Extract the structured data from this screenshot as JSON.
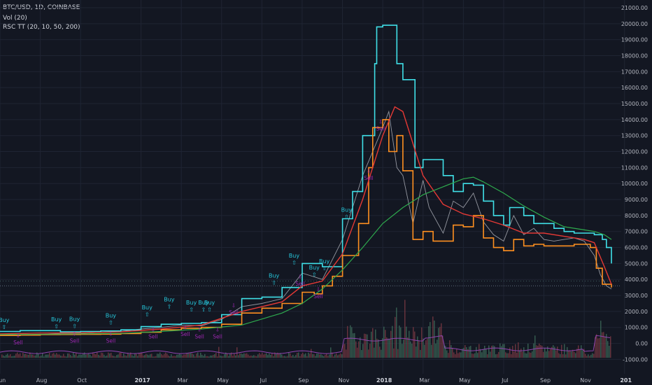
{
  "header": {
    "symbol_line": "BTC/USD, 1D, COINBASE",
    "volume_line": "Vol (20)",
    "indicator_line": "RSC TT (20, 10, 50, 200)"
  },
  "colors": {
    "background": "#131722",
    "grid": "#1f2433",
    "price": "#9598a1",
    "upper_channel": "#40e0e8",
    "lower_channel": "#ff9020",
    "ma_fast": "#e53935",
    "ma_slow": "#2eaa4e",
    "volume_up": "#3d6b5a",
    "volume_down": "#7a3a44",
    "volume_ma": "#8e44ad",
    "buy": "#26c6da",
    "sell": "#9c27b0"
  },
  "chart_data": {
    "type": "line",
    "title": "BTC/USD, 1D, COINBASE",
    "ylim": [
      -500,
      21000
    ],
    "y_ticks": [
      "21000.00",
      "20000.00",
      "19000.00",
      "18000.00",
      "17000.00",
      "16000.00",
      "15000.00",
      "14000.00",
      "13000.00",
      "12000.00",
      "11000.00",
      "10000.00",
      "9000.00",
      "8000.00",
      "7000.00",
      "6000.00",
      "5000.00",
      "4000.00",
      "3000.00",
      "2000.00",
      "1000.00",
      "0.00",
      "-1000.00"
    ],
    "x_ticks": [
      {
        "label": "Jun",
        "t": 0,
        "bold": false
      },
      {
        "label": "Aug",
        "t": 2,
        "bold": false
      },
      {
        "label": "Oct",
        "t": 4,
        "bold": false
      },
      {
        "label": "2017",
        "t": 7,
        "bold": true
      },
      {
        "label": "Mar",
        "t": 9,
        "bold": false
      },
      {
        "label": "May",
        "t": 11,
        "bold": false
      },
      {
        "label": "Jul",
        "t": 13,
        "bold": false
      },
      {
        "label": "Sep",
        "t": 15,
        "bold": false
      },
      {
        "label": "Nov",
        "t": 17,
        "bold": false
      },
      {
        "label": "2018",
        "t": 19,
        "bold": true
      },
      {
        "label": "Mar",
        "t": 21,
        "bold": false
      },
      {
        "label": "May",
        "t": 23,
        "bold": false
      },
      {
        "label": "Jul",
        "t": 25,
        "bold": false
      },
      {
        "label": "Sep",
        "t": 27,
        "bold": false
      },
      {
        "label": "Nov",
        "t": 29,
        "bold": false
      },
      {
        "label": "201",
        "t": 31,
        "bold": true
      }
    ],
    "current_price": 3600,
    "series": [
      {
        "key": "price",
        "points": [
          [
            0,
            550
          ],
          [
            1,
            620
          ],
          [
            2,
            650
          ],
          [
            3,
            610
          ],
          [
            4,
            620
          ],
          [
            5,
            700
          ],
          [
            6,
            750
          ],
          [
            7,
            900
          ],
          [
            8,
            1000
          ],
          [
            9,
            1150
          ],
          [
            10,
            1100
          ],
          [
            11,
            1500
          ],
          [
            12,
            2300
          ],
          [
            13,
            2500
          ],
          [
            14,
            2800
          ],
          [
            15,
            4400
          ],
          [
            16,
            4000
          ],
          [
            17,
            6500
          ],
          [
            18,
            10500
          ],
          [
            19,
            13500
          ],
          [
            19.3,
            14500
          ],
          [
            19.7,
            11000
          ],
          [
            20,
            10500
          ],
          [
            20.5,
            7500
          ],
          [
            21,
            10200
          ],
          [
            21.3,
            8500
          ],
          [
            22,
            6900
          ],
          [
            22.5,
            8900
          ],
          [
            23,
            8500
          ],
          [
            23.5,
            9400
          ],
          [
            24,
            7600
          ],
          [
            24.5,
            6800
          ],
          [
            25,
            6400
          ],
          [
            25.5,
            8000
          ],
          [
            26,
            6800
          ],
          [
            26.5,
            7200
          ],
          [
            27,
            6500
          ],
          [
            27.5,
            6400
          ],
          [
            28,
            6500
          ],
          [
            28.5,
            6600
          ],
          [
            29,
            6400
          ],
          [
            29.5,
            5500
          ],
          [
            29.8,
            4300
          ],
          [
            30.1,
            3600
          ],
          [
            30.35,
            3400
          ]
        ]
      },
      {
        "key": "upper",
        "points": [
          [
            0,
            750
          ],
          [
            1,
            800
          ],
          [
            2,
            800
          ],
          [
            3,
            720
          ],
          [
            4,
            750
          ],
          [
            5,
            780
          ],
          [
            6,
            850
          ],
          [
            7,
            1050
          ],
          [
            8,
            1200
          ],
          [
            9,
            1250
          ],
          [
            10,
            1300
          ],
          [
            11,
            1800
          ],
          [
            12,
            2800
          ],
          [
            13,
            2900
          ],
          [
            14,
            3500
          ],
          [
            15,
            5000
          ],
          [
            16,
            4800
          ],
          [
            17,
            7800
          ],
          [
            17.5,
            9500
          ],
          [
            18,
            13000
          ],
          [
            18.6,
            17500
          ],
          [
            18.7,
            19800
          ],
          [
            19,
            19900
          ],
          [
            19.5,
            19900
          ],
          [
            19.7,
            17500
          ],
          [
            20,
            16500
          ],
          [
            20.6,
            11000
          ],
          [
            21,
            11500
          ],
          [
            22,
            10500
          ],
          [
            22.5,
            9500
          ],
          [
            23,
            10000
          ],
          [
            23.5,
            9900
          ],
          [
            24,
            8900
          ],
          [
            24.5,
            8000
          ],
          [
            25,
            7400
          ],
          [
            25.3,
            8500
          ],
          [
            26,
            8000
          ],
          [
            26.5,
            7500
          ],
          [
            27,
            7500
          ],
          [
            27.5,
            7200
          ],
          [
            28,
            7000
          ],
          [
            28.5,
            6900
          ],
          [
            29,
            6900
          ],
          [
            29.5,
            6800
          ],
          [
            29.9,
            6500
          ],
          [
            30.1,
            6000
          ],
          [
            30.35,
            5000
          ]
        ]
      },
      {
        "key": "lower",
        "points": [
          [
            0,
            500
          ],
          [
            1,
            520
          ],
          [
            2,
            550
          ],
          [
            3,
            560
          ],
          [
            4,
            570
          ],
          [
            5,
            580
          ],
          [
            6,
            620
          ],
          [
            7,
            700
          ],
          [
            8,
            850
          ],
          [
            9,
            950
          ],
          [
            10,
            1000
          ],
          [
            11,
            1200
          ],
          [
            12,
            1900
          ],
          [
            13,
            2200
          ],
          [
            14,
            2500
          ],
          [
            15,
            3200
          ],
          [
            15.6,
            3100
          ],
          [
            16,
            3600
          ],
          [
            16.5,
            4200
          ],
          [
            17,
            5500
          ],
          [
            17.8,
            7500
          ],
          [
            18.3,
            11000
          ],
          [
            18.5,
            13500
          ],
          [
            19,
            14000
          ],
          [
            19.3,
            12000
          ],
          [
            19.7,
            13000
          ],
          [
            20,
            10800
          ],
          [
            20.5,
            6500
          ],
          [
            21,
            7000
          ],
          [
            21.5,
            6400
          ],
          [
            22,
            6400
          ],
          [
            22.5,
            7400
          ],
          [
            23,
            7300
          ],
          [
            23.5,
            8000
          ],
          [
            24,
            6600
          ],
          [
            24.5,
            6000
          ],
          [
            25,
            5800
          ],
          [
            25.5,
            6500
          ],
          [
            26,
            6100
          ],
          [
            26.5,
            6200
          ],
          [
            27,
            6100
          ],
          [
            27.5,
            6100
          ],
          [
            28,
            6100
          ],
          [
            28.5,
            6200
          ],
          [
            29,
            6200
          ],
          [
            29.3,
            6000
          ],
          [
            29.6,
            4700
          ],
          [
            29.9,
            3700
          ],
          [
            30.35,
            3500
          ]
        ]
      },
      {
        "key": "ma_fast",
        "points": [
          [
            0,
            600
          ],
          [
            2,
            650
          ],
          [
            4,
            660
          ],
          [
            6,
            720
          ],
          [
            8,
            900
          ],
          [
            10,
            1150
          ],
          [
            12,
            2000
          ],
          [
            13,
            2300
          ],
          [
            14,
            2600
          ],
          [
            15,
            3600
          ],
          [
            16,
            3900
          ],
          [
            17,
            5600
          ],
          [
            18,
            9000
          ],
          [
            19,
            13000
          ],
          [
            19.6,
            14800
          ],
          [
            20,
            14500
          ],
          [
            21,
            10500
          ],
          [
            22,
            8700
          ],
          [
            23,
            8100
          ],
          [
            24,
            7800
          ],
          [
            25,
            7400
          ],
          [
            26,
            6900
          ],
          [
            27,
            6900
          ],
          [
            28,
            6700
          ],
          [
            29,
            6500
          ],
          [
            29.5,
            6300
          ],
          [
            30,
            4800
          ],
          [
            30.35,
            3700
          ]
        ]
      },
      {
        "key": "ma_slow",
        "points": [
          [
            0,
            550
          ],
          [
            3,
            580
          ],
          [
            6,
            630
          ],
          [
            8,
            750
          ],
          [
            10,
            900
          ],
          [
            12,
            1150
          ],
          [
            14,
            1900
          ],
          [
            15,
            2500
          ],
          [
            16,
            3400
          ],
          [
            17,
            4600
          ],
          [
            18,
            6000
          ],
          [
            19,
            7500
          ],
          [
            20,
            8500
          ],
          [
            21,
            9300
          ],
          [
            22,
            9800
          ],
          [
            23,
            10300
          ],
          [
            23.5,
            10400
          ],
          [
            24,
            10100
          ],
          [
            25,
            9400
          ],
          [
            26,
            8600
          ],
          [
            27,
            7900
          ],
          [
            28,
            7300
          ],
          [
            29,
            7100
          ],
          [
            29.5,
            7000
          ],
          [
            30,
            6800
          ],
          [
            30.35,
            6500
          ]
        ]
      }
    ],
    "buy_signals": [
      [
        0.2,
        820
      ],
      [
        2.8,
        860
      ],
      [
        3.7,
        880
      ],
      [
        5.5,
        1100
      ],
      [
        7.3,
        1600
      ],
      [
        8.4,
        2100
      ],
      [
        9.5,
        1900
      ],
      [
        10.1,
        1900
      ],
      [
        10.4,
        1900
      ],
      [
        13.6,
        3600
      ],
      [
        14.6,
        4850
      ],
      [
        15.6,
        4100
      ],
      [
        16.1,
        4500
      ],
      [
        17.2,
        7700
      ]
    ],
    "sell_signals": [
      [
        0.9,
        120
      ],
      [
        3.7,
        230
      ],
      [
        5.5,
        220
      ],
      [
        7.6,
        480
      ],
      [
        9.2,
        640
      ],
      [
        9.9,
        480
      ],
      [
        10.8,
        480
      ],
      [
        11.6,
        2000
      ],
      [
        14.9,
        3800
      ],
      [
        15.8,
        3000
      ],
      [
        18.3,
        10400
      ],
      [
        18.9,
        13500
      ]
    ]
  }
}
